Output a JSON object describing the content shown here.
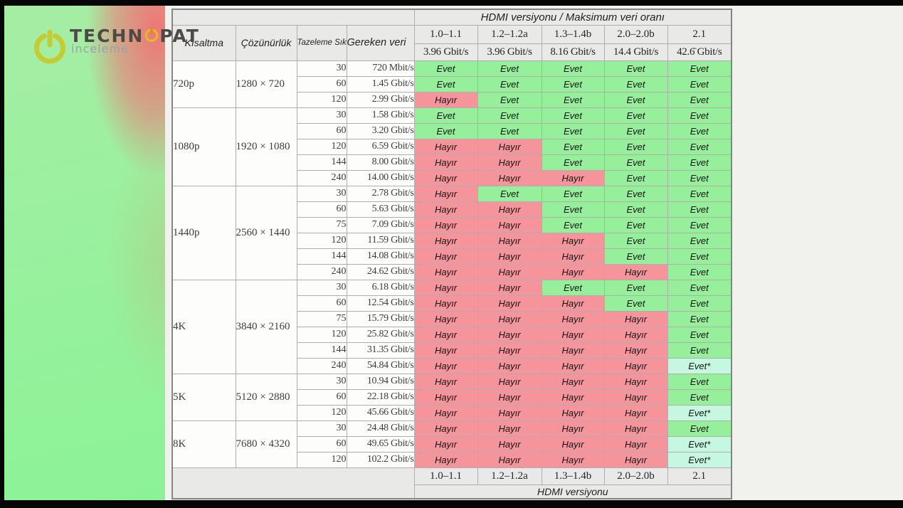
{
  "branding": {
    "wordmark_left": "TECHN",
    "wordmark_right": "PAT",
    "subtitle": "inceleme",
    "accent_yellow": "#c3cc33",
    "accent_gold": "#e3b62b"
  },
  "chart_data": {
    "type": "table",
    "title": "HDMI versiyonu  /  Maksimum veri oranı",
    "footer_title": "HDMI versiyonu",
    "column_headers": [
      "Kısaltma",
      "Çözünürlük",
      "Tazeleme Sıklığı (Hz)",
      "Gereken veri"
    ],
    "versions": [
      "1.0–1.1",
      "1.2–1.2a",
      "1.3–1.4b",
      "2.0–2.0b",
      "2.1"
    ],
    "max_rates": [
      "3.96 Gbit/s",
      "3.96 Gbit/s",
      "8.16 Gbit/s",
      "14.4 Gbit/s",
      "42.6̄ Gbit/s"
    ],
    "labels": {
      "yes": "Evet",
      "no": "Hayır",
      "yes_star": "Evet*"
    },
    "colors": {
      "yes": "#96f09b",
      "no": "#f6949b",
      "yes_star": "#c6f8e1",
      "header_bg": "#e9e9e7"
    },
    "groups": [
      {
        "name": "720p",
        "resolution": "1280 × 720",
        "rows": [
          {
            "hz": "30",
            "data": "720 Mbit/s",
            "support": [
              "yes",
              "yes",
              "yes",
              "yes",
              "yes"
            ]
          },
          {
            "hz": "60",
            "data": "1.45 Gbit/s",
            "support": [
              "yes",
              "yes",
              "yes",
              "yes",
              "yes"
            ]
          },
          {
            "hz": "120",
            "data": "2.99 Gbit/s",
            "support": [
              "no",
              "yes",
              "yes",
              "yes",
              "yes"
            ]
          }
        ]
      },
      {
        "name": "1080p",
        "resolution": "1920 × 1080",
        "rows": [
          {
            "hz": "30",
            "data": "1.58 Gbit/s",
            "support": [
              "yes",
              "yes",
              "yes",
              "yes",
              "yes"
            ]
          },
          {
            "hz": "60",
            "data": "3.20 Gbit/s",
            "support": [
              "yes",
              "yes",
              "yes",
              "yes",
              "yes"
            ]
          },
          {
            "hz": "120",
            "data": "6.59 Gbit/s",
            "support": [
              "no",
              "no",
              "yes",
              "yes",
              "yes"
            ]
          },
          {
            "hz": "144",
            "data": "8.00 Gbit/s",
            "support": [
              "no",
              "no",
              "yes",
              "yes",
              "yes"
            ]
          },
          {
            "hz": "240",
            "data": "14.00 Gbit/s",
            "support": [
              "no",
              "no",
              "no",
              "yes",
              "yes"
            ]
          }
        ]
      },
      {
        "name": "1440p",
        "resolution": "2560 × 1440",
        "rows": [
          {
            "hz": "30",
            "data": "2.78 Gbit/s",
            "support": [
              "no",
              "yes",
              "yes",
              "yes",
              "yes"
            ]
          },
          {
            "hz": "60",
            "data": "5.63 Gbit/s",
            "support": [
              "no",
              "no",
              "yes",
              "yes",
              "yes"
            ]
          },
          {
            "hz": "75",
            "data": "7.09 Gbit/s",
            "support": [
              "no",
              "no",
              "yes",
              "yes",
              "yes"
            ]
          },
          {
            "hz": "120",
            "data": "11.59 Gbit/s",
            "support": [
              "no",
              "no",
              "no",
              "yes",
              "yes"
            ]
          },
          {
            "hz": "144",
            "data": "14.08 Gbit/s",
            "support": [
              "no",
              "no",
              "no",
              "yes",
              "yes"
            ]
          },
          {
            "hz": "240",
            "data": "24.62 Gbit/s",
            "support": [
              "no",
              "no",
              "no",
              "no",
              "yes"
            ]
          }
        ]
      },
      {
        "name": "4K",
        "resolution": "3840 × 2160",
        "rows": [
          {
            "hz": "30",
            "data": "6.18 Gbit/s",
            "support": [
              "no",
              "no",
              "yes",
              "yes",
              "yes"
            ]
          },
          {
            "hz": "60",
            "data": "12.54 Gbit/s",
            "support": [
              "no",
              "no",
              "no",
              "yes",
              "yes"
            ]
          },
          {
            "hz": "75",
            "data": "15.79 Gbit/s",
            "support": [
              "no",
              "no",
              "no",
              "no",
              "yes"
            ]
          },
          {
            "hz": "120",
            "data": "25.82 Gbit/s",
            "support": [
              "no",
              "no",
              "no",
              "no",
              "yes"
            ]
          },
          {
            "hz": "144",
            "data": "31.35 Gbit/s",
            "support": [
              "no",
              "no",
              "no",
              "no",
              "yes"
            ]
          },
          {
            "hz": "240",
            "data": "54.84 Gbit/s",
            "support": [
              "no",
              "no",
              "no",
              "no",
              "yes_star"
            ]
          }
        ]
      },
      {
        "name": "5K",
        "resolution": "5120 × 2880",
        "rows": [
          {
            "hz": "30",
            "data": "10.94 Gbit/s",
            "support": [
              "no",
              "no",
              "no",
              "no",
              "yes"
            ]
          },
          {
            "hz": "60",
            "data": "22.18 Gbit/s",
            "support": [
              "no",
              "no",
              "no",
              "no",
              "yes"
            ]
          },
          {
            "hz": "120",
            "data": "45.66 Gbit/s",
            "support": [
              "no",
              "no",
              "no",
              "no",
              "yes_star"
            ]
          }
        ]
      },
      {
        "name": "8K",
        "resolution": "7680 × 4320",
        "rows": [
          {
            "hz": "30",
            "data": "24.48 Gbit/s",
            "support": [
              "no",
              "no",
              "no",
              "no",
              "yes"
            ]
          },
          {
            "hz": "60",
            "data": "49.65 Gbit/s",
            "support": [
              "no",
              "no",
              "no",
              "no",
              "yes_star"
            ]
          },
          {
            "hz": "120",
            "data": "102.2 Gbit/s",
            "support": [
              "no",
              "no",
              "no",
              "no",
              "yes_star"
            ]
          }
        ]
      }
    ]
  }
}
